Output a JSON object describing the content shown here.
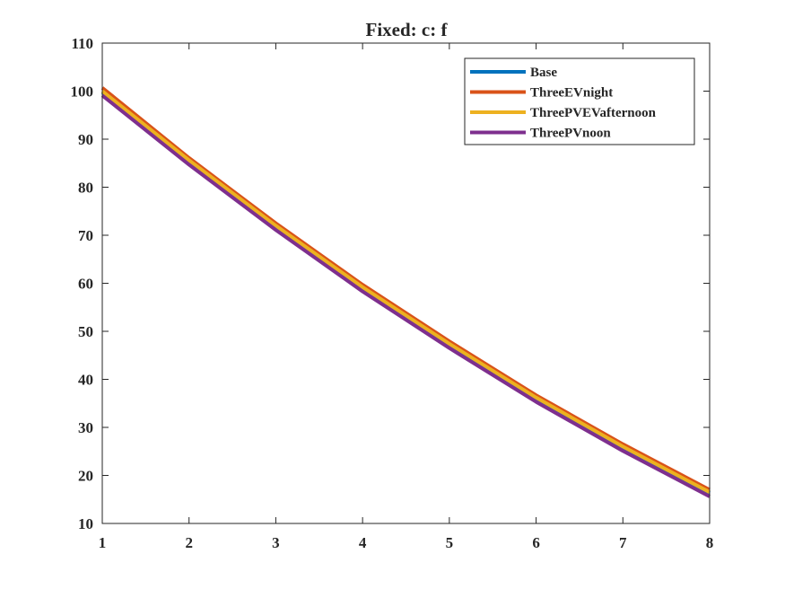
{
  "chart_data": {
    "type": "line",
    "title": "Fixed: c: f",
    "xlabel": "",
    "ylabel": "",
    "xlim": [
      1,
      8
    ],
    "ylim": [
      10,
      110
    ],
    "xticks": [
      1,
      2,
      3,
      4,
      5,
      6,
      7,
      8
    ],
    "yticks": [
      10,
      20,
      30,
      40,
      50,
      60,
      70,
      80,
      90,
      100,
      110
    ],
    "grid": false,
    "legend_position": "top-right",
    "x": [
      1,
      2,
      3,
      4,
      5,
      6,
      7,
      8
    ],
    "series": [
      {
        "name": "Base",
        "color": "#0072BD",
        "values": [
          99.8,
          85.4,
          71.8,
          59.0,
          47.2,
          36.0,
          25.8,
          16.3
        ]
      },
      {
        "name": "ThreeEVnight",
        "color": "#D95319",
        "values": [
          100.7,
          86.1,
          72.5,
          59.7,
          47.9,
          36.7,
          26.5,
          17.0
        ]
      },
      {
        "name": "ThreePVEVafternoon",
        "color": "#EDB120",
        "values": [
          100.0,
          85.6,
          72.0,
          59.2,
          47.4,
          36.2,
          26.0,
          16.5
        ]
      },
      {
        "name": "ThreePVnoon",
        "color": "#7E2F8E",
        "values": [
          99.1,
          84.7,
          71.1,
          58.3,
          46.5,
          35.3,
          25.1,
          15.6
        ]
      }
    ]
  }
}
